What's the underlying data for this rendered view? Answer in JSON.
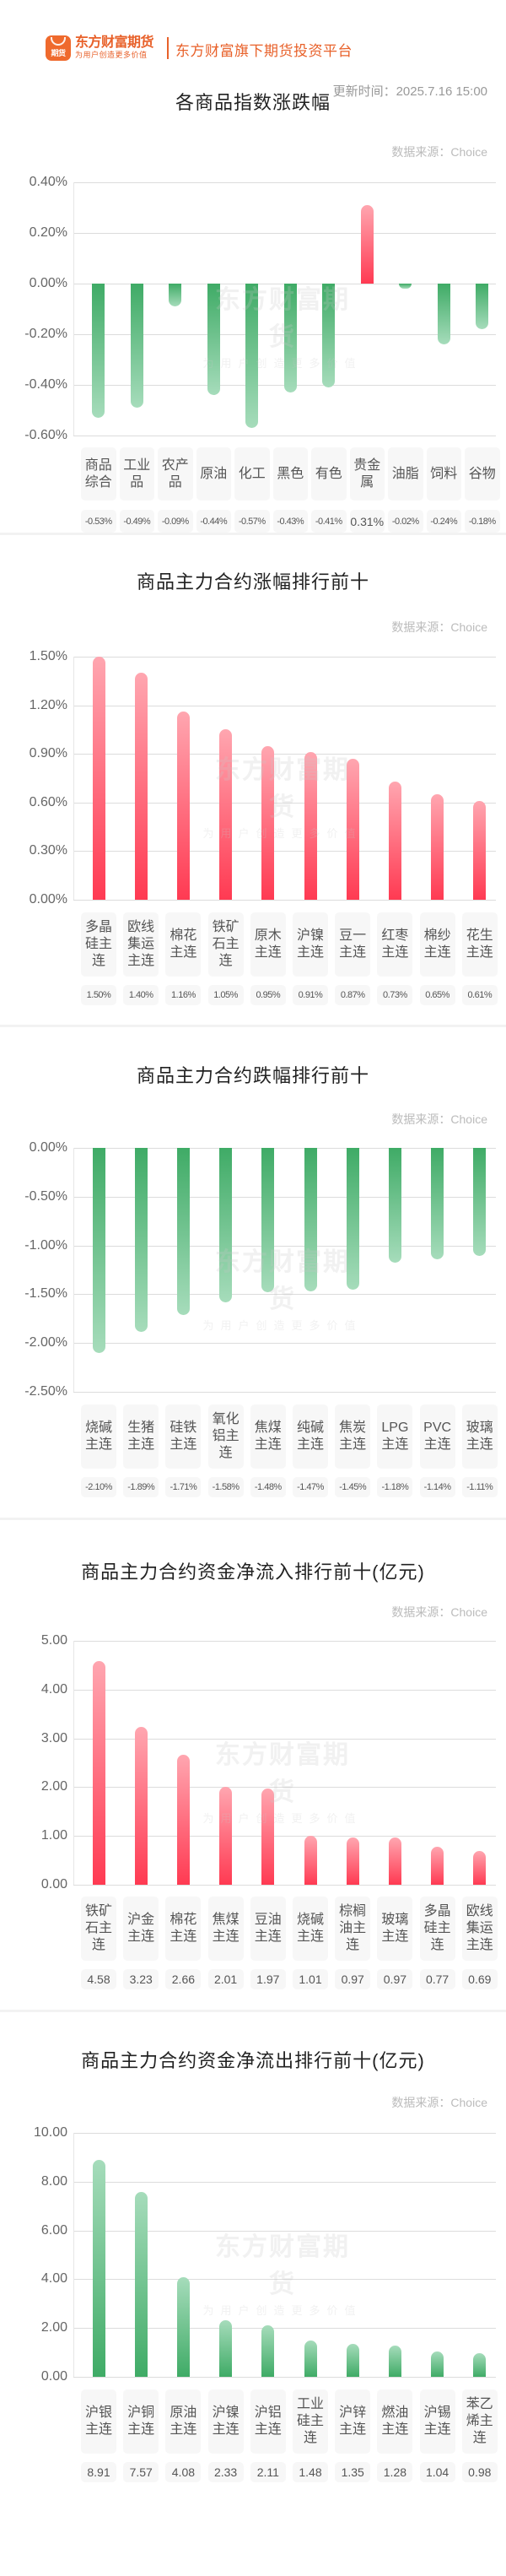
{
  "header": {
    "logo_text": "期货",
    "brand_name": "东方财富期货",
    "brand_slogan": "为用户创造更多价值",
    "platform": "东方财富旗下期货投资平台",
    "update_time": "更新时间：2025.7.16 15:00"
  },
  "watermark": {
    "line1": "东方财富期货",
    "line2": "为用户创造更多价值"
  },
  "colors": {
    "brand": "#e8612a",
    "up": "#ff3a52",
    "down": "#3fab66"
  },
  "chart_data": [
    {
      "type": "bar",
      "title": "各商品指数涨跌幅",
      "source": "数据来源：Choice",
      "ylabel": "",
      "xlabel": "",
      "unit": "%",
      "ylim": [
        -0.6,
        0.4
      ],
      "yticks": [
        "0.40%",
        "0.20%",
        "0.00%",
        "-0.20%",
        "-0.40%",
        "-0.60%"
      ],
      "categories": [
        "商品综合",
        "工业品",
        "农产品",
        "原油",
        "化工",
        "黑色",
        "有色",
        "贵金属",
        "油脂",
        "饲料",
        "谷物"
      ],
      "values": [
        -0.53,
        -0.49,
        -0.09,
        -0.44,
        -0.57,
        -0.43,
        -0.41,
        0.31,
        -0.02,
        -0.24,
        -0.18
      ],
      "labels": [
        "-0.53%",
        "-0.49%",
        "-0.09%",
        "-0.44%",
        "-0.57%",
        "-0.43%",
        "-0.41%",
        "0.31%",
        "-0.02%",
        "-0.24%",
        "-0.18%"
      ],
      "grid": true,
      "legend": "none"
    },
    {
      "type": "bar",
      "title": "商品主力合约涨幅排行前十",
      "source": "数据来源：Choice",
      "unit": "%",
      "ylim": [
        0,
        1.5
      ],
      "yticks": [
        "1.50%",
        "1.20%",
        "0.90%",
        "0.60%",
        "0.30%",
        "0.00%"
      ],
      "categories": [
        "多晶硅主连",
        "欧线集运主连",
        "棉花主连",
        "铁矿石主连",
        "原木主连",
        "沪镍主连",
        "豆一主连",
        "红枣主连",
        "棉纱主连",
        "花生主连"
      ],
      "values": [
        1.5,
        1.4,
        1.16,
        1.05,
        0.95,
        0.91,
        0.87,
        0.73,
        0.65,
        0.61
      ],
      "labels": [
        "1.50%",
        "1.40%",
        "1.16%",
        "1.05%",
        "0.95%",
        "0.91%",
        "0.87%",
        "0.73%",
        "0.65%",
        "0.61%"
      ],
      "grid": true,
      "legend": "none"
    },
    {
      "type": "bar",
      "title": "商品主力合约跌幅排行前十",
      "source": "数据来源：Choice",
      "unit": "%",
      "ylim": [
        -2.5,
        0
      ],
      "yticks": [
        "0.00%",
        "-0.50%",
        "-1.00%",
        "-1.50%",
        "-2.00%",
        "-2.50%"
      ],
      "categories": [
        "烧碱主连",
        "生猪主连",
        "硅铁主连",
        "氧化铝主连",
        "焦煤主连",
        "纯碱主连",
        "焦炭主连",
        "LPG主连",
        "PVC主连",
        "玻璃主连"
      ],
      "values": [
        -2.1,
        -1.89,
        -1.71,
        -1.58,
        -1.48,
        -1.47,
        -1.45,
        -1.18,
        -1.14,
        -1.11
      ],
      "labels": [
        "-2.10%",
        "-1.89%",
        "-1.71%",
        "-1.58%",
        "-1.48%",
        "-1.47%",
        "-1.45%",
        "-1.18%",
        "-1.14%",
        "-1.11%"
      ],
      "grid": true,
      "legend": "none"
    },
    {
      "type": "bar",
      "title": "商品主力合约资金净流入排行前十(亿元)",
      "source": "数据来源：Choice",
      "unit": "亿元",
      "ylim": [
        0,
        5
      ],
      "yticks": [
        "5.00",
        "4.00",
        "3.00",
        "2.00",
        "1.00",
        "0.00"
      ],
      "categories": [
        "铁矿石主连",
        "沪金主连",
        "棉花主连",
        "焦煤主连",
        "豆油主连",
        "烧碱主连",
        "棕榈油主连",
        "玻璃主连",
        "多晶硅主连",
        "欧线集运主连"
      ],
      "values": [
        4.58,
        3.23,
        2.66,
        2.01,
        1.97,
        1.01,
        0.97,
        0.97,
        0.77,
        0.69
      ],
      "labels": [
        "4.58",
        "3.23",
        "2.66",
        "2.01",
        "1.97",
        "1.01",
        "0.97",
        "0.97",
        "0.77",
        "0.69"
      ],
      "grid": true,
      "legend": "none"
    },
    {
      "type": "bar",
      "title": "商品主力合约资金净流出排行前十(亿元)",
      "source": "数据来源：Choice",
      "unit": "亿元",
      "ylim": [
        0,
        10
      ],
      "yticks": [
        "10.00",
        "8.00",
        "6.00",
        "4.00",
        "2.00",
        "0.00"
      ],
      "categories": [
        "沪银主连",
        "沪铜主连",
        "原油主连",
        "沪镍主连",
        "沪铝主连",
        "工业硅主连",
        "沪锌主连",
        "燃油主连",
        "沪锡主连",
        "苯乙烯主连"
      ],
      "values": [
        8.91,
        7.57,
        4.08,
        2.33,
        2.11,
        1.48,
        1.35,
        1.28,
        1.04,
        0.98
      ],
      "labels": [
        "8.91",
        "7.57",
        "4.08",
        "2.33",
        "2.11",
        "1.48",
        "1.35",
        "1.28",
        "1.04",
        "0.98"
      ],
      "grid": true,
      "legend": "none"
    }
  ]
}
